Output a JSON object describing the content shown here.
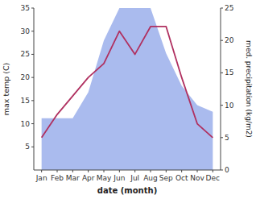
{
  "chart_data": {
    "type": "line",
    "categories": [
      "Jan",
      "Feb",
      "Mar",
      "Apr",
      "May",
      "Jun",
      "Jul",
      "Aug",
      "Sep",
      "Oct",
      "Nov",
      "Dec"
    ],
    "series": [
      {
        "type": "area",
        "axis": "y2",
        "color": "#aabbee",
        "values": [
          8,
          8,
          8,
          12,
          20,
          25,
          25,
          25,
          18,
          13,
          10,
          9
        ]
      },
      {
        "type": "line",
        "color": "#b03060",
        "values": [
          7,
          12,
          16,
          20,
          23,
          30,
          25,
          31,
          31,
          20,
          10,
          7
        ]
      }
    ],
    "xlabel": "date (month)",
    "ylabel": "max temp (C)",
    "y2label": "med. precipitation (kg/m2)",
    "ylim": [
      0,
      35
    ],
    "yticks": [
      5,
      10,
      15,
      20,
      25,
      30,
      35
    ],
    "y2lim": [
      0,
      25
    ],
    "y2ticks": [
      0,
      5,
      10,
      15,
      20,
      25
    ],
    "grid": false
  }
}
